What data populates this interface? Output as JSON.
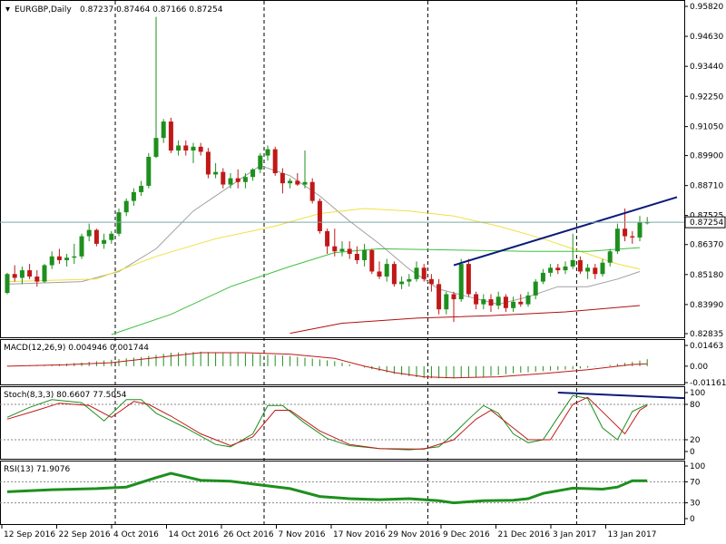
{
  "header": {
    "symbol": "EURGBP,Daily",
    "ohlc": "0.87237 0.87464 0.87166 0.87254"
  },
  "colors": {
    "bull": "#1e8f1e",
    "bear": "#c01818",
    "ma_fast": "#a0a0a0",
    "ma_mid": "#f0e040",
    "ma_slow": "#40c040",
    "ma_long": "#b01010",
    "trendline": "#0a1a7a",
    "price_line": "#7fa7a7"
  },
  "chart_data": [
    {
      "type": "candlestick",
      "name": "price",
      "ylim": [
        0.82835,
        0.9582
      ],
      "y_ticks": [
        "0.95820",
        "0.94630",
        "0.93440",
        "0.92250",
        "0.91050",
        "0.89900",
        "0.88710",
        "0.87525",
        "0.86370",
        "0.85180",
        "0.83990",
        "0.82835"
      ],
      "current_price": "0.87254",
      "x_ticks": [
        "12 Sep 2016",
        "22 Sep 2016",
        "4 Oct 2016",
        "14 Oct 2016",
        "26 Oct 2016",
        "7 Nov 2016",
        "17 Nov 2016",
        "29 Nov 2016",
        "9 Dec 2016",
        "21 Dec 2016",
        "3 Jan 2017",
        "13 Jan 2017"
      ],
      "candles": [
        [
          0.8445,
          0.8525,
          0.844,
          0.852
        ],
        [
          0.852,
          0.8555,
          0.849,
          0.8505
        ],
        [
          0.8505,
          0.855,
          0.848,
          0.8535
        ],
        [
          0.8535,
          0.856,
          0.85,
          0.851
        ],
        [
          0.851,
          0.8535,
          0.847,
          0.849
        ],
        [
          0.849,
          0.856,
          0.8485,
          0.8555
        ],
        [
          0.8555,
          0.861,
          0.854,
          0.859
        ],
        [
          0.859,
          0.862,
          0.856,
          0.8575
        ],
        [
          0.8575,
          0.86,
          0.855,
          0.8585
        ],
        [
          0.8585,
          0.864,
          0.856,
          0.859
        ],
        [
          0.859,
          0.868,
          0.858,
          0.867
        ],
        [
          0.867,
          0.872,
          0.865,
          0.8695
        ],
        [
          0.8695,
          0.87,
          0.863,
          0.864
        ],
        [
          0.864,
          0.868,
          0.862,
          0.8655
        ],
        [
          0.8655,
          0.869,
          0.864,
          0.868
        ],
        [
          0.868,
          0.878,
          0.867,
          0.8765
        ],
        [
          0.8765,
          0.882,
          0.875,
          0.881
        ],
        [
          0.881,
          0.886,
          0.879,
          0.8845
        ],
        [
          0.8845,
          0.889,
          0.883,
          0.887
        ],
        [
          0.887,
          0.9,
          0.886,
          0.8985
        ],
        [
          0.8985,
          0.954,
          0.898,
          0.906
        ],
        [
          0.906,
          0.9135,
          0.904,
          0.9125
        ],
        [
          0.9125,
          0.914,
          0.9,
          0.901
        ],
        [
          0.901,
          0.905,
          0.899,
          0.903
        ],
        [
          0.903,
          0.905,
          0.899,
          0.901
        ],
        [
          0.901,
          0.904,
          0.896,
          0.9025
        ],
        [
          0.9025,
          0.904,
          0.899,
          0.9005
        ],
        [
          0.9005,
          0.902,
          0.89,
          0.8915
        ],
        [
          0.8915,
          0.896,
          0.89,
          0.8925
        ],
        [
          0.8925,
          0.894,
          0.886,
          0.8875
        ],
        [
          0.8875,
          0.892,
          0.886,
          0.89
        ],
        [
          0.89,
          0.8935,
          0.886,
          0.8885
        ],
        [
          0.8885,
          0.892,
          0.886,
          0.8905
        ],
        [
          0.8905,
          0.894,
          0.889,
          0.8935
        ],
        [
          0.8935,
          0.9,
          0.892,
          0.899
        ],
        [
          0.899,
          0.903,
          0.897,
          0.9015
        ],
        [
          0.9015,
          0.9025,
          0.891,
          0.892
        ],
        [
          0.892,
          0.894,
          0.884,
          0.888
        ],
        [
          0.888,
          0.89,
          0.886,
          0.889
        ],
        [
          0.889,
          0.892,
          0.887,
          0.8875
        ],
        [
          0.8875,
          0.901,
          0.886,
          0.8885
        ],
        [
          0.8885,
          0.89,
          0.88,
          0.881
        ],
        [
          0.881,
          0.882,
          0.868,
          0.869
        ],
        [
          0.869,
          0.87,
          0.86,
          0.863
        ],
        [
          0.863,
          0.87,
          0.859,
          0.861
        ],
        [
          0.861,
          0.865,
          0.859,
          0.862
        ],
        [
          0.862,
          0.865,
          0.858,
          0.86
        ],
        [
          0.86,
          0.863,
          0.856,
          0.8575
        ],
        [
          0.8575,
          0.864,
          0.855,
          0.8615
        ],
        [
          0.8615,
          0.862,
          0.852,
          0.853
        ],
        [
          0.853,
          0.857,
          0.85,
          0.851
        ],
        [
          0.851,
          0.858,
          0.849,
          0.856
        ],
        [
          0.856,
          0.857,
          0.847,
          0.848
        ],
        [
          0.848,
          0.851,
          0.846,
          0.849
        ],
        [
          0.849,
          0.852,
          0.847,
          0.85
        ],
        [
          0.85,
          0.857,
          0.849,
          0.8545
        ],
        [
          0.8545,
          0.856,
          0.849,
          0.85
        ],
        [
          0.85,
          0.852,
          0.845,
          0.848
        ],
        [
          0.848,
          0.85,
          0.836,
          0.838
        ],
        [
          0.838,
          0.845,
          0.836,
          0.844
        ],
        [
          0.844,
          0.845,
          0.833,
          0.842
        ],
        [
          0.842,
          0.858,
          0.841,
          0.856
        ],
        [
          0.856,
          0.858,
          0.843,
          0.844
        ],
        [
          0.844,
          0.845,
          0.838,
          0.84
        ],
        [
          0.84,
          0.844,
          0.838,
          0.842
        ],
        [
          0.842,
          0.844,
          0.837,
          0.8395
        ],
        [
          0.8395,
          0.845,
          0.838,
          0.843
        ],
        [
          0.843,
          0.844,
          0.837,
          0.8385
        ],
        [
          0.8385,
          0.843,
          0.837,
          0.841
        ],
        [
          0.841,
          0.844,
          0.839,
          0.84
        ],
        [
          0.84,
          0.845,
          0.839,
          0.8435
        ],
        [
          0.8435,
          0.85,
          0.842,
          0.849
        ],
        [
          0.849,
          0.854,
          0.848,
          0.8525
        ],
        [
          0.8525,
          0.856,
          0.851,
          0.8545
        ],
        [
          0.8545,
          0.856,
          0.852,
          0.8535
        ],
        [
          0.8535,
          0.857,
          0.852,
          0.855
        ],
        [
          0.855,
          0.868,
          0.854,
          0.8575
        ],
        [
          0.8575,
          0.859,
          0.852,
          0.853
        ],
        [
          0.853,
          0.856,
          0.85,
          0.8545
        ],
        [
          0.8545,
          0.856,
          0.85,
          0.852
        ],
        [
          0.852,
          0.858,
          0.851,
          0.8565
        ],
        [
          0.8565,
          0.862,
          0.855,
          0.861
        ],
        [
          0.861,
          0.872,
          0.86,
          0.87
        ],
        [
          0.87,
          0.878,
          0.865,
          0.867
        ],
        [
          0.867,
          0.869,
          0.864,
          0.8665
        ],
        [
          0.8665,
          0.875,
          0.865,
          0.8725
        ],
        [
          0.8724,
          0.8746,
          0.8717,
          0.8725
        ]
      ],
      "ma": [
        {
          "color_key": "ma_fast",
          "values": [
            [
              0,
              0.848
            ],
            [
              10,
              0.849
            ],
            [
              15,
              0.853
            ],
            [
              20,
              0.862
            ],
            [
              25,
              0.877
            ],
            [
              30,
              0.887
            ],
            [
              34,
              0.895
            ],
            [
              38,
              0.891
            ],
            [
              42,
              0.883
            ],
            [
              46,
              0.873
            ],
            [
              50,
              0.864
            ],
            [
              54,
              0.854
            ],
            [
              58,
              0.846
            ],
            [
              62,
              0.843
            ],
            [
              66,
              0.84
            ],
            [
              70,
              0.843
            ],
            [
              74,
              0.847
            ],
            [
              78,
              0.847
            ],
            [
              82,
              0.85
            ],
            [
              85,
              0.853
            ]
          ]
        },
        {
          "color_key": "ma_mid",
          "values": [
            [
              0,
              0.849
            ],
            [
              12,
              0.85
            ],
            [
              20,
              0.859
            ],
            [
              28,
              0.866
            ],
            [
              36,
              0.871
            ],
            [
              42,
              0.876
            ],
            [
              48,
              0.878
            ],
            [
              54,
              0.877
            ],
            [
              60,
              0.875
            ],
            [
              66,
              0.871
            ],
            [
              72,
              0.866
            ],
            [
              78,
              0.86
            ],
            [
              82,
              0.856
            ],
            [
              85,
              0.854
            ]
          ]
        },
        {
          "color_key": "ma_slow",
          "values": [
            [
              14,
              0.828
            ],
            [
              22,
              0.836
            ],
            [
              30,
              0.847
            ],
            [
              38,
              0.855
            ],
            [
              44,
              0.8605
            ],
            [
              50,
              0.862
            ],
            [
              60,
              0.8615
            ],
            [
              70,
              0.861
            ],
            [
              78,
              0.861
            ],
            [
              85,
              0.8625
            ]
          ]
        },
        {
          "color_key": "ma_long",
          "values": [
            [
              38,
              0.8285
            ],
            [
              45,
              0.8325
            ],
            [
              55,
              0.8345
            ],
            [
              65,
              0.8355
            ],
            [
              75,
              0.837
            ],
            [
              85,
              0.8395
            ]
          ]
        }
      ],
      "trendlines": [
        [
          [
            60,
            0.8555
          ],
          [
            90,
            0.8825
          ]
        ]
      ],
      "price_line": 0.87254
    },
    {
      "type": "histogram",
      "name": "macd",
      "title": "MACD(12,26,9) 0.004946 0.001744",
      "ylim": [
        -0.01161,
        0.01463
      ],
      "y_ticks": [
        "0.01463",
        "0.00",
        "-0.01161"
      ],
      "histogram": [
        [
          0,
          0.0003
        ],
        [
          6,
          0.001
        ],
        [
          12,
          0.0035
        ],
        [
          18,
          0.0065
        ],
        [
          22,
          0.0095
        ],
        [
          26,
          0.0102
        ],
        [
          32,
          0.009
        ],
        [
          38,
          0.0072
        ],
        [
          44,
          0.0035
        ],
        [
          48,
          -0.001
        ],
        [
          52,
          -0.0055
        ],
        [
          56,
          -0.0085
        ],
        [
          60,
          -0.0086
        ],
        [
          64,
          -0.0075
        ],
        [
          68,
          -0.005
        ],
        [
          72,
          -0.0035
        ],
        [
          76,
          -0.0022
        ],
        [
          80,
          0.0002
        ],
        [
          84,
          0.003
        ],
        [
          86,
          0.0049
        ]
      ],
      "signal": [
        [
          0,
          0.0
        ],
        [
          8,
          0.001
        ],
        [
          14,
          0.0025
        ],
        [
          20,
          0.006
        ],
        [
          26,
          0.0095
        ],
        [
          32,
          0.0095
        ],
        [
          38,
          0.0085
        ],
        [
          44,
          0.0055
        ],
        [
          48,
          0.0
        ],
        [
          52,
          -0.0045
        ],
        [
          56,
          -0.0075
        ],
        [
          60,
          -0.0082
        ],
        [
          66,
          -0.0075
        ],
        [
          72,
          -0.0052
        ],
        [
          78,
          -0.0025
        ],
        [
          84,
          0.0012
        ],
        [
          86,
          0.0017
        ]
      ]
    },
    {
      "type": "line",
      "name": "stoch",
      "title": "Stoch(8,3,3) 80.6607 77.5054",
      "ylim": [
        0,
        100
      ],
      "y_ticks": [
        "100",
        "80",
        "20",
        "0"
      ],
      "main": [
        [
          0,
          58
        ],
        [
          3,
          75
        ],
        [
          6,
          88
        ],
        [
          10,
          83
        ],
        [
          13,
          52
        ],
        [
          16,
          88
        ],
        [
          18,
          88
        ],
        [
          20,
          65
        ],
        [
          24,
          40
        ],
        [
          28,
          12
        ],
        [
          30,
          8
        ],
        [
          33,
          30
        ],
        [
          35,
          78
        ],
        [
          37,
          78
        ],
        [
          40,
          48
        ],
        [
          43,
          22
        ],
        [
          46,
          10
        ],
        [
          50,
          5
        ],
        [
          54,
          3
        ],
        [
          56,
          5
        ],
        [
          58,
          8
        ],
        [
          60,
          30
        ],
        [
          62,
          55
        ],
        [
          64,
          78
        ],
        [
          66,
          65
        ],
        [
          68,
          30
        ],
        [
          70,
          15
        ],
        [
          72,
          20
        ],
        [
          74,
          58
        ],
        [
          76,
          95
        ],
        [
          78,
          90
        ],
        [
          80,
          40
        ],
        [
          82,
          20
        ],
        [
          84,
          68
        ],
        [
          86,
          80
        ]
      ],
      "signal": [
        [
          0,
          55
        ],
        [
          4,
          70
        ],
        [
          7,
          82
        ],
        [
          11,
          78
        ],
        [
          14,
          58
        ],
        [
          17,
          85
        ],
        [
          19,
          80
        ],
        [
          22,
          60
        ],
        [
          26,
          30
        ],
        [
          30,
          10
        ],
        [
          33,
          25
        ],
        [
          36,
          70
        ],
        [
          38,
          70
        ],
        [
          42,
          35
        ],
        [
          46,
          12
        ],
        [
          50,
          5
        ],
        [
          56,
          4
        ],
        [
          60,
          20
        ],
        [
          63,
          55
        ],
        [
          65,
          70
        ],
        [
          67,
          50
        ],
        [
          70,
          20
        ],
        [
          73,
          20
        ],
        [
          76,
          80
        ],
        [
          78,
          92
        ],
        [
          81,
          55
        ],
        [
          83,
          30
        ],
        [
          85,
          70
        ],
        [
          86,
          78
        ]
      ],
      "trendlines": [
        [
          [
            74,
            100
          ],
          [
            92,
            90
          ]
        ]
      ]
    },
    {
      "type": "line",
      "name": "rsi",
      "title": "RSI(13) 71.9076",
      "ylim": [
        0,
        100
      ],
      "y_ticks": [
        "100",
        "70",
        "30",
        "0"
      ],
      "values": [
        [
          0,
          51
        ],
        [
          6,
          55
        ],
        [
          12,
          57
        ],
        [
          16,
          60
        ],
        [
          20,
          78
        ],
        [
          22,
          86
        ],
        [
          26,
          73
        ],
        [
          30,
          71
        ],
        [
          34,
          64
        ],
        [
          38,
          57
        ],
        [
          42,
          42
        ],
        [
          46,
          38
        ],
        [
          50,
          36
        ],
        [
          54,
          38
        ],
        [
          58,
          34
        ],
        [
          60,
          30
        ],
        [
          64,
          34
        ],
        [
          68,
          35
        ],
        [
          70,
          38
        ],
        [
          72,
          48
        ],
        [
          76,
          58
        ],
        [
          80,
          56
        ],
        [
          82,
          60
        ],
        [
          84,
          72
        ],
        [
          86,
          72
        ]
      ]
    }
  ]
}
